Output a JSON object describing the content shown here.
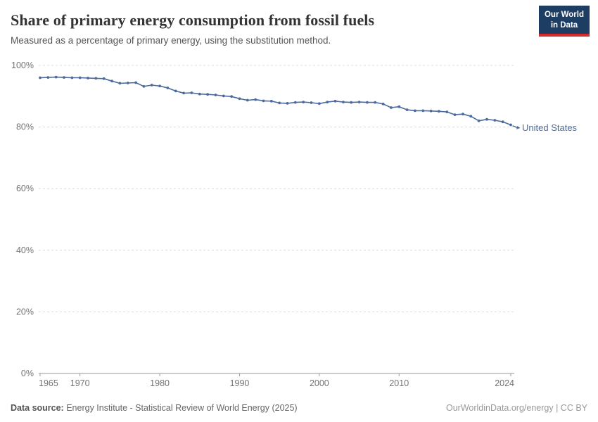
{
  "header": {
    "title": "Share of primary energy consumption from fossil fuels",
    "subtitle": "Measured as a percentage of primary energy, using the substitution method.",
    "logo": {
      "line1": "Our World",
      "line2": "in Data",
      "bg_color": "#1d3d63",
      "bar_color": "#d42b2b"
    }
  },
  "chart_data": {
    "type": "line",
    "title": "Share of primary energy consumption from fossil fuels",
    "subtitle": "Measured as a percentage of primary energy, using the substitution method.",
    "xlabel": "",
    "ylabel": "",
    "xlim": [
      1965,
      2024
    ],
    "ylim": [
      0,
      100
    ],
    "x_ticks": [
      1965,
      1970,
      1980,
      1990,
      2000,
      2010,
      2024
    ],
    "y_ticks": [
      0,
      20,
      40,
      60,
      80,
      100
    ],
    "y_tick_suffix": "%",
    "grid": "horizontal-dashed",
    "legend": "end-of-line-label",
    "line_color": "#4c6a9c",
    "series": [
      {
        "name": "United States",
        "end_label": "United States",
        "color": "#4c6a9c",
        "x": [
          1965,
          1966,
          1967,
          1968,
          1969,
          1970,
          1971,
          1972,
          1973,
          1974,
          1975,
          1976,
          1977,
          1978,
          1979,
          1980,
          1981,
          1982,
          1983,
          1984,
          1985,
          1986,
          1987,
          1988,
          1989,
          1990,
          1991,
          1992,
          1993,
          1994,
          1995,
          1996,
          1997,
          1998,
          1999,
          2000,
          2001,
          2002,
          2003,
          2004,
          2005,
          2006,
          2007,
          2008,
          2009,
          2010,
          2011,
          2012,
          2013,
          2014,
          2015,
          2016,
          2017,
          2018,
          2019,
          2020,
          2021,
          2022,
          2023,
          2024
        ],
        "values": [
          96.0,
          96.1,
          96.2,
          96.1,
          96.0,
          96.0,
          95.9,
          95.8,
          95.7,
          94.9,
          94.2,
          94.3,
          94.4,
          93.2,
          93.6,
          93.3,
          92.7,
          91.7,
          91.0,
          91.1,
          90.7,
          90.6,
          90.4,
          90.1,
          89.9,
          89.2,
          88.7,
          88.9,
          88.5,
          88.4,
          87.8,
          87.7,
          88.0,
          88.1,
          87.9,
          87.6,
          88.1,
          88.4,
          88.1,
          88.0,
          88.1,
          88.0,
          88.0,
          87.5,
          86.3,
          86.6,
          85.6,
          85.3,
          85.3,
          85.2,
          85.1,
          84.9,
          84.0,
          84.2,
          83.5,
          82.0,
          82.5,
          82.2,
          81.7,
          80.7
        ]
      }
    ]
  },
  "footer": {
    "source_label": "Data source:",
    "source_text": " Energy Institute - Statistical Review of World Energy (2025)",
    "right_text": "OurWorldinData.org/energy | CC BY"
  }
}
